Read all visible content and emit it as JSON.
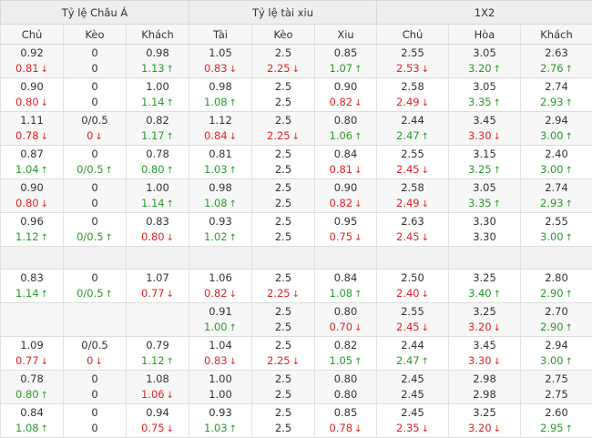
{
  "header": {
    "groups": [
      "Tỷ lệ Châu Á",
      "Tỷ lệ tài xiu",
      "1X2"
    ],
    "columns": [
      "Chủ",
      "Kèo",
      "Khách",
      "Tài",
      "Kèo",
      "Xiu",
      "Chủ",
      "Hòa",
      "Khách"
    ]
  },
  "colors": {
    "down": "#e02424",
    "up": "#2a9a2a",
    "neutral": "#333333"
  },
  "icons": {
    "down": "arrow-down-icon",
    "up": "arrow-up-icon"
  },
  "rows": [
    [
      [
        "0.92",
        "0.81",
        "d"
      ],
      [
        "0",
        "0",
        ""
      ],
      [
        "0.98",
        "1.13",
        "u"
      ],
      [
        "1.05",
        "0.83",
        "d"
      ],
      [
        "2.5",
        "2.25",
        "d"
      ],
      [
        "0.85",
        "1.07",
        "u"
      ],
      [
        "2.55",
        "2.53",
        "d"
      ],
      [
        "3.05",
        "3.20",
        "u"
      ],
      [
        "2.63",
        "2.76",
        "u"
      ]
    ],
    [
      [
        "0.90",
        "0.80",
        "d"
      ],
      [
        "0",
        "0",
        ""
      ],
      [
        "1.00",
        "1.14",
        "u"
      ],
      [
        "0.98",
        "1.08",
        "u"
      ],
      [
        "2.5",
        "2.5",
        ""
      ],
      [
        "0.90",
        "0.82",
        "d"
      ],
      [
        "2.58",
        "2.49",
        "d"
      ],
      [
        "3.05",
        "3.35",
        "u"
      ],
      [
        "2.74",
        "2.93",
        "u"
      ]
    ],
    [
      [
        "1.11",
        "0.78",
        "d"
      ],
      [
        "0/0.5",
        "0",
        "d"
      ],
      [
        "0.82",
        "1.17",
        "u"
      ],
      [
        "1.12",
        "0.84",
        "d"
      ],
      [
        "2.5",
        "2.25",
        "d"
      ],
      [
        "0.80",
        "1.06",
        "u"
      ],
      [
        "2.44",
        "2.47",
        "u"
      ],
      [
        "3.45",
        "3.30",
        "d"
      ],
      [
        "2.94",
        "3.00",
        "u"
      ]
    ],
    [
      [
        "0.87",
        "1.04",
        "u"
      ],
      [
        "0",
        "0/0.5",
        "u"
      ],
      [
        "0.78",
        "0.80",
        "u"
      ],
      [
        "0.81",
        "1.03",
        "u"
      ],
      [
        "2.5",
        "2.5",
        ""
      ],
      [
        "0.84",
        "0.81",
        "d"
      ],
      [
        "2.55",
        "2.45",
        "d"
      ],
      [
        "3.15",
        "3.25",
        "u"
      ],
      [
        "2.40",
        "3.00",
        "u"
      ]
    ],
    [
      [
        "0.90",
        "0.80",
        "d"
      ],
      [
        "0",
        "0",
        ""
      ],
      [
        "1.00",
        "1.14",
        "u"
      ],
      [
        "0.98",
        "1.08",
        "u"
      ],
      [
        "2.5",
        "2.5",
        ""
      ],
      [
        "0.90",
        "0.82",
        "d"
      ],
      [
        "2.58",
        "2.49",
        "d"
      ],
      [
        "3.05",
        "3.35",
        "u"
      ],
      [
        "2.74",
        "2.93",
        "u"
      ]
    ],
    [
      [
        "0.96",
        "1.12",
        "u"
      ],
      [
        "0",
        "0/0.5",
        "u"
      ],
      [
        "0.83",
        "0.80",
        "d"
      ],
      [
        "0.93",
        "1.02",
        "u"
      ],
      [
        "2.5",
        "2.5",
        ""
      ],
      [
        "0.95",
        "0.75",
        "d"
      ],
      [
        "2.63",
        "2.45",
        "d"
      ],
      [
        "3.30",
        "3.30",
        ""
      ],
      [
        "2.55",
        "3.00",
        "u"
      ]
    ],
    null,
    [
      [
        "0.83",
        "1.14",
        "u"
      ],
      [
        "0",
        "0/0.5",
        "u"
      ],
      [
        "1.07",
        "0.77",
        "d"
      ],
      [
        "1.06",
        "0.82",
        "d"
      ],
      [
        "2.5",
        "2.25",
        "d"
      ],
      [
        "0.84",
        "1.08",
        "u"
      ],
      [
        "2.50",
        "2.40",
        "d"
      ],
      [
        "3.25",
        "3.40",
        "u"
      ],
      [
        "2.80",
        "2.90",
        "u"
      ]
    ],
    [
      [
        "",
        "",
        ""
      ],
      [
        "",
        "",
        ""
      ],
      [
        "",
        "",
        ""
      ],
      [
        "0.91",
        "1.00",
        "u"
      ],
      [
        "2.5",
        "2.5",
        ""
      ],
      [
        "0.80",
        "0.70",
        "d"
      ],
      [
        "2.55",
        "2.45",
        "d"
      ],
      [
        "3.25",
        "3.20",
        "d"
      ],
      [
        "2.70",
        "2.90",
        "u"
      ]
    ],
    [
      [
        "1.09",
        "0.77",
        "d"
      ],
      [
        "0/0.5",
        "0",
        "d"
      ],
      [
        "0.79",
        "1.12",
        "u"
      ],
      [
        "1.04",
        "0.83",
        "d"
      ],
      [
        "2.5",
        "2.25",
        "d"
      ],
      [
        "0.82",
        "1.05",
        "u"
      ],
      [
        "2.44",
        "2.47",
        "u"
      ],
      [
        "3.45",
        "3.30",
        "d"
      ],
      [
        "2.94",
        "3.00",
        "u"
      ]
    ],
    [
      [
        "0.78",
        "0.80",
        "u"
      ],
      [
        "0",
        "0",
        ""
      ],
      [
        "1.08",
        "1.06",
        "d"
      ],
      [
        "1.00",
        "1.00",
        ""
      ],
      [
        "2.5",
        "2.5",
        ""
      ],
      [
        "0.80",
        "0.80",
        ""
      ],
      [
        "2.45",
        "2.45",
        ""
      ],
      [
        "2.98",
        "2.98",
        ""
      ],
      [
        "2.75",
        "2.75",
        ""
      ]
    ],
    [
      [
        "0.84",
        "1.08",
        "u"
      ],
      [
        "0",
        "0",
        ""
      ],
      [
        "0.94",
        "0.75",
        "d"
      ],
      [
        "0.93",
        "1.03",
        "u"
      ],
      [
        "2.5",
        "2.5",
        ""
      ],
      [
        "0.85",
        "0.78",
        "d"
      ],
      [
        "2.45",
        "2.35",
        "d"
      ],
      [
        "3.25",
        "3.20",
        "d"
      ],
      [
        "2.60",
        "2.95",
        "u"
      ]
    ]
  ]
}
